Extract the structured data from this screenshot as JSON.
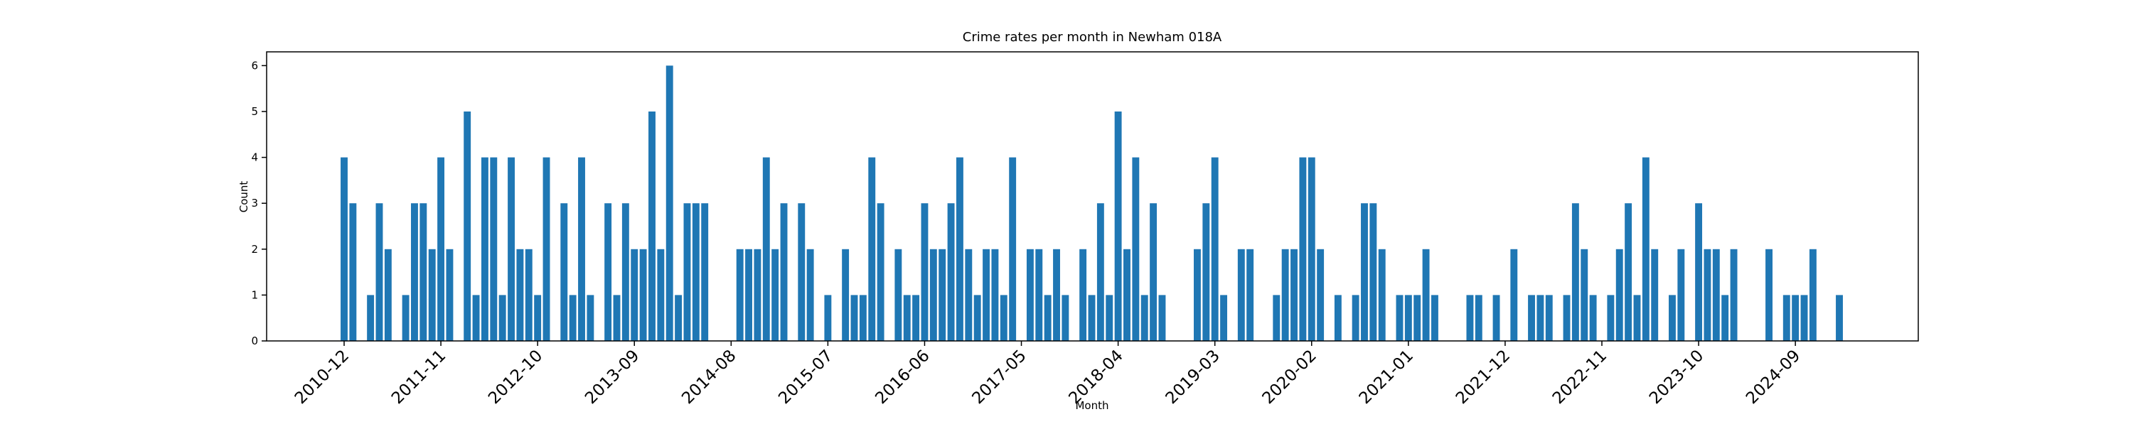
{
  "chart_data": {
    "type": "bar",
    "title": "Crime rates per month in Newham 018A",
    "x_label": "Month",
    "y_label": "Count",
    "color": "#1f77b4",
    "categories": [
      "2010-12",
      null,
      null,
      null,
      null,
      null,
      null,
      null,
      null,
      null,
      null,
      "2011-11",
      null,
      null,
      null,
      null,
      null,
      null,
      null,
      null,
      null,
      null,
      "2012-10",
      null,
      null,
      null,
      null,
      null,
      null,
      null,
      null,
      null,
      null,
      "2013-09",
      null,
      null,
      null,
      null,
      null,
      null,
      null,
      null,
      null,
      null,
      "2014-08",
      null,
      null,
      null,
      null,
      null,
      null,
      null,
      null,
      null,
      null,
      "2015-07",
      null,
      null,
      null,
      null,
      null,
      null,
      null,
      null,
      null,
      null,
      "2016-06",
      null,
      null,
      null,
      null,
      null,
      null,
      null,
      null,
      null,
      null,
      "2017-05",
      null,
      null,
      null,
      null,
      null,
      null,
      null,
      null,
      null,
      null,
      "2018-04",
      null,
      null,
      null,
      null,
      null,
      null,
      null,
      null,
      null,
      null,
      "2019-03",
      null,
      null,
      null,
      null,
      null,
      null,
      null,
      null,
      null,
      null,
      "2020-02",
      null,
      null,
      null,
      null,
      null,
      null,
      null,
      null,
      null,
      null,
      "2021-01",
      null,
      null,
      null,
      null,
      null,
      null,
      null,
      null,
      null,
      null,
      "2021-12",
      null,
      null,
      null,
      null,
      null,
      null,
      null,
      null,
      null,
      null,
      "2022-11",
      null,
      null,
      null,
      null,
      null,
      null,
      null,
      null,
      null,
      null,
      "2023-10",
      null,
      null,
      null,
      null,
      null,
      null,
      null,
      null,
      null,
      null,
      "2024-09",
      null,
      null,
      null,
      null,
      null
    ],
    "values": [
      4,
      3,
      0,
      1,
      3,
      2,
      0,
      1,
      3,
      3,
      2,
      4,
      2,
      0,
      5,
      1,
      4,
      4,
      1,
      4,
      2,
      2,
      1,
      4,
      0,
      3,
      1,
      4,
      1,
      0,
      3,
      1,
      3,
      2,
      2,
      5,
      2,
      6,
      1,
      3,
      3,
      3,
      0,
      0,
      0,
      2,
      2,
      2,
      4,
      2,
      3,
      0,
      3,
      2,
      0,
      1,
      0,
      2,
      1,
      1,
      4,
      3,
      0,
      2,
      1,
      1,
      3,
      2,
      2,
      3,
      4,
      2,
      1,
      2,
      2,
      1,
      4,
      0,
      2,
      2,
      1,
      2,
      1,
      0,
      2,
      1,
      3,
      1,
      5,
      2,
      4,
      1,
      3,
      1,
      0,
      0,
      0,
      2,
      3,
      4,
      1,
      0,
      2,
      2,
      0,
      0,
      1,
      2,
      2,
      4,
      4,
      2,
      0,
      1,
      0,
      1,
      3,
      3,
      2,
      0,
      1,
      1,
      1,
      2,
      1,
      0,
      0,
      0,
      1,
      1,
      0,
      1,
      0,
      2,
      0,
      1,
      1,
      1,
      0,
      1,
      3,
      2,
      1,
      0,
      1,
      2,
      3,
      1,
      4,
      2,
      0,
      1,
      2,
      0,
      3,
      2,
      2,
      1,
      2,
      0,
      0,
      0,
      2,
      0,
      1,
      1,
      1,
      2,
      0,
      0,
      1
    ],
    "ylim": [
      0,
      6.3
    ],
    "yticks": [
      0,
      1,
      2,
      3,
      4,
      5,
      6
    ],
    "grid": false
  }
}
